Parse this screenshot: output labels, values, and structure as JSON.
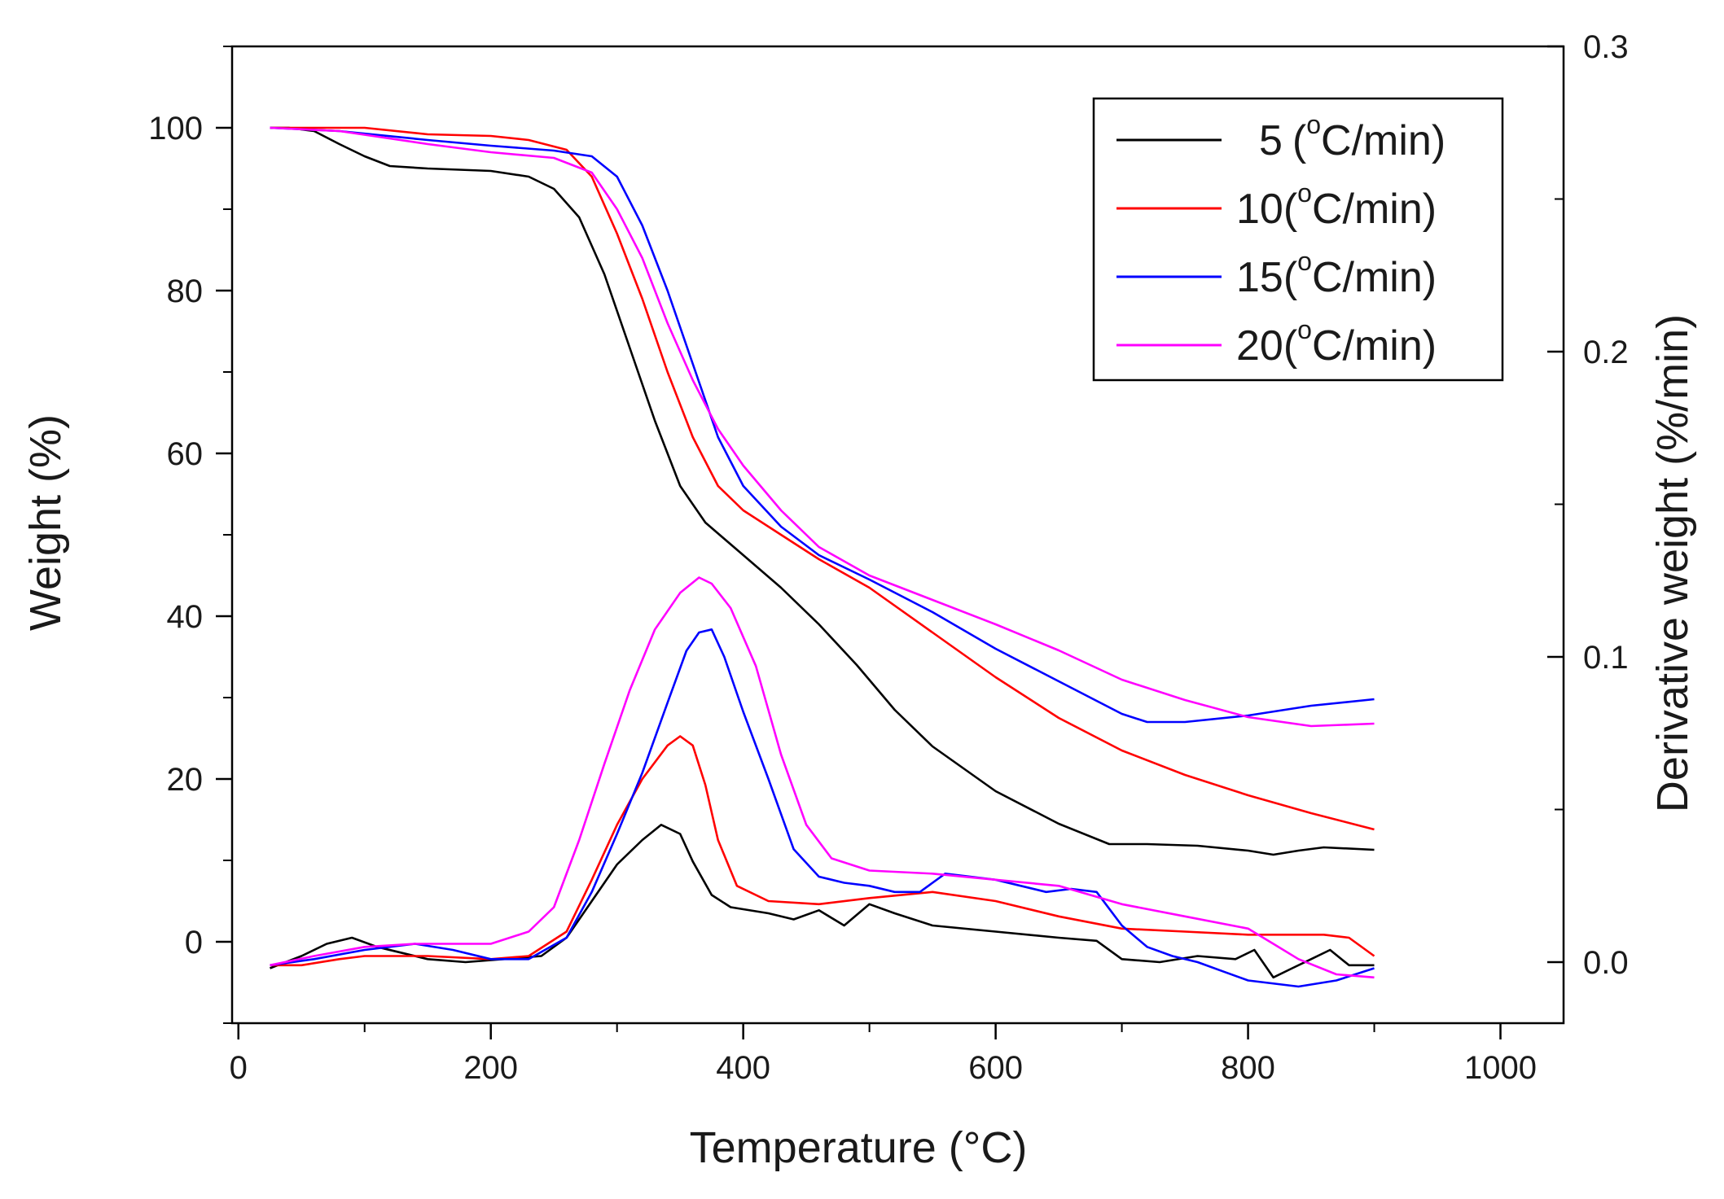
{
  "chart_data": {
    "type": "line",
    "xlabel": "Temperature (°C)",
    "ylabel": "Weight (%)",
    "y2label": "Derivative weight (%/min)",
    "xlim": [
      -5,
      1050
    ],
    "ylim": [
      -10,
      110
    ],
    "y2lim": [
      -0.02,
      0.3
    ],
    "x_ticks": [
      "0",
      "200",
      "400",
      "600",
      "800",
      "1000"
    ],
    "x_tick_values": [
      0,
      200,
      400,
      600,
      800,
      1000
    ],
    "y_ticks": [
      "0",
      "20",
      "40",
      "60",
      "80",
      "100"
    ],
    "y_tick_values": [
      0,
      20,
      40,
      60,
      80,
      100
    ],
    "y2_ticks": [
      "0.0",
      "0.1",
      "0.2",
      "0.3"
    ],
    "y2_tick_values": [
      0.0,
      0.1,
      0.2,
      0.3
    ],
    "legend_position": "top-right",
    "legend_unit_prefix": "(",
    "legend_unit_sup": "o",
    "legend_unit_suffix": "C/min)",
    "series": [
      {
        "name": "5",
        "color": "#000000",
        "tga": [
          [
            25,
            100
          ],
          [
            40,
            100
          ],
          [
            60,
            99.6
          ],
          [
            80,
            98
          ],
          [
            100,
            96.5
          ],
          [
            120,
            95.3
          ],
          [
            150,
            95
          ],
          [
            200,
            94.7
          ],
          [
            230,
            94
          ],
          [
            250,
            92.5
          ],
          [
            270,
            89
          ],
          [
            290,
            82
          ],
          [
            310,
            73
          ],
          [
            330,
            64
          ],
          [
            350,
            56
          ],
          [
            370,
            51.5
          ],
          [
            400,
            47.5
          ],
          [
            430,
            43.5
          ],
          [
            460,
            39
          ],
          [
            490,
            34
          ],
          [
            520,
            28.5
          ],
          [
            550,
            24
          ],
          [
            600,
            18.5
          ],
          [
            650,
            14.5
          ],
          [
            690,
            12
          ],
          [
            720,
            12
          ],
          [
            760,
            11.8
          ],
          [
            800,
            11.2
          ],
          [
            820,
            10.7
          ],
          [
            840,
            11.2
          ],
          [
            860,
            11.6
          ],
          [
            900,
            11.3
          ]
        ],
        "dtg": [
          [
            25,
            -0.002
          ],
          [
            50,
            0.002
          ],
          [
            70,
            0.006
          ],
          [
            90,
            0.008
          ],
          [
            110,
            0.005
          ],
          [
            130,
            0.003
          ],
          [
            150,
            0.001
          ],
          [
            180,
            0.0
          ],
          [
            210,
            0.001
          ],
          [
            240,
            0.002
          ],
          [
            260,
            0.008
          ],
          [
            280,
            0.02
          ],
          [
            300,
            0.032
          ],
          [
            320,
            0.04
          ],
          [
            335,
            0.045
          ],
          [
            350,
            0.042
          ],
          [
            360,
            0.033
          ],
          [
            375,
            0.022
          ],
          [
            390,
            0.018
          ],
          [
            420,
            0.016
          ],
          [
            440,
            0.014
          ],
          [
            460,
            0.017
          ],
          [
            480,
            0.012
          ],
          [
            500,
            0.019
          ],
          [
            520,
            0.016
          ],
          [
            550,
            0.012
          ],
          [
            600,
            0.01
          ],
          [
            650,
            0.008
          ],
          [
            680,
            0.007
          ],
          [
            700,
            0.001
          ],
          [
            730,
            0.0
          ],
          [
            760,
            0.002
          ],
          [
            790,
            0.001
          ],
          [
            805,
            0.004
          ],
          [
            820,
            -0.005
          ],
          [
            835,
            -0.002
          ],
          [
            850,
            0.001
          ],
          [
            865,
            0.004
          ],
          [
            880,
            -0.001
          ],
          [
            900,
            -0.001
          ]
        ]
      },
      {
        "name": "10",
        "color": "#ff0000",
        "tga": [
          [
            25,
            100
          ],
          [
            100,
            100
          ],
          [
            150,
            99.2
          ],
          [
            200,
            99
          ],
          [
            230,
            98.5
          ],
          [
            260,
            97.3
          ],
          [
            280,
            94
          ],
          [
            300,
            87
          ],
          [
            320,
            79
          ],
          [
            340,
            70
          ],
          [
            360,
            62
          ],
          [
            380,
            56
          ],
          [
            400,
            53
          ],
          [
            430,
            50
          ],
          [
            460,
            47
          ],
          [
            500,
            43.5
          ],
          [
            550,
            38
          ],
          [
            600,
            32.5
          ],
          [
            650,
            27.5
          ],
          [
            700,
            23.5
          ],
          [
            750,
            20.5
          ],
          [
            800,
            18
          ],
          [
            850,
            15.8
          ],
          [
            900,
            13.8
          ]
        ],
        "dtg": [
          [
            25,
            -0.001
          ],
          [
            50,
            -0.001
          ],
          [
            80,
            0.001
          ],
          [
            100,
            0.002
          ],
          [
            150,
            0.002
          ],
          [
            200,
            0.001
          ],
          [
            230,
            0.002
          ],
          [
            260,
            0.01
          ],
          [
            280,
            0.027
          ],
          [
            300,
            0.045
          ],
          [
            320,
            0.06
          ],
          [
            340,
            0.071
          ],
          [
            350,
            0.074
          ],
          [
            360,
            0.071
          ],
          [
            370,
            0.058
          ],
          [
            380,
            0.04
          ],
          [
            395,
            0.025
          ],
          [
            420,
            0.02
          ],
          [
            460,
            0.019
          ],
          [
            500,
            0.021
          ],
          [
            550,
            0.023
          ],
          [
            600,
            0.02
          ],
          [
            650,
            0.015
          ],
          [
            700,
            0.011
          ],
          [
            750,
            0.01
          ],
          [
            800,
            0.009
          ],
          [
            860,
            0.009
          ],
          [
            880,
            0.008
          ],
          [
            900,
            0.002
          ]
        ]
      },
      {
        "name": "15",
        "color": "#0000ff",
        "tga": [
          [
            25,
            100
          ],
          [
            80,
            99.6
          ],
          [
            150,
            98.5
          ],
          [
            200,
            97.8
          ],
          [
            250,
            97.2
          ],
          [
            280,
            96.5
          ],
          [
            300,
            94
          ],
          [
            320,
            88
          ],
          [
            340,
            80
          ],
          [
            360,
            71
          ],
          [
            380,
            62
          ],
          [
            400,
            56
          ],
          [
            430,
            51
          ],
          [
            460,
            47.5
          ],
          [
            500,
            44.5
          ],
          [
            550,
            40.5
          ],
          [
            600,
            36
          ],
          [
            650,
            32
          ],
          [
            700,
            28
          ],
          [
            720,
            27
          ],
          [
            750,
            27
          ],
          [
            800,
            27.8
          ],
          [
            850,
            29
          ],
          [
            900,
            29.8
          ]
        ],
        "dtg": [
          [
            25,
            -0.001
          ],
          [
            60,
            0.001
          ],
          [
            100,
            0.004
          ],
          [
            140,
            0.006
          ],
          [
            170,
            0.004
          ],
          [
            200,
            0.001
          ],
          [
            230,
            0.001
          ],
          [
            260,
            0.008
          ],
          [
            280,
            0.023
          ],
          [
            300,
            0.042
          ],
          [
            320,
            0.062
          ],
          [
            340,
            0.085
          ],
          [
            355,
            0.102
          ],
          [
            365,
            0.108
          ],
          [
            375,
            0.109
          ],
          [
            385,
            0.1
          ],
          [
            400,
            0.082
          ],
          [
            420,
            0.06
          ],
          [
            440,
            0.037
          ],
          [
            460,
            0.028
          ],
          [
            480,
            0.026
          ],
          [
            500,
            0.025
          ],
          [
            520,
            0.023
          ],
          [
            540,
            0.023
          ],
          [
            560,
            0.029
          ],
          [
            580,
            0.028
          ],
          [
            600,
            0.027
          ],
          [
            620,
            0.025
          ],
          [
            640,
            0.023
          ],
          [
            660,
            0.024
          ],
          [
            680,
            0.023
          ],
          [
            700,
            0.012
          ],
          [
            720,
            0.005
          ],
          [
            740,
            0.002
          ],
          [
            760,
            0.0
          ],
          [
            780,
            -0.003
          ],
          [
            800,
            -0.006
          ],
          [
            840,
            -0.008
          ],
          [
            870,
            -0.006
          ],
          [
            900,
            -0.002
          ]
        ]
      },
      {
        "name": "20",
        "color": "#ff00ff",
        "tga": [
          [
            25,
            100
          ],
          [
            80,
            99.6
          ],
          [
            150,
            98
          ],
          [
            200,
            97
          ],
          [
            250,
            96.3
          ],
          [
            280,
            94.5
          ],
          [
            300,
            90
          ],
          [
            320,
            84
          ],
          [
            340,
            76
          ],
          [
            360,
            69
          ],
          [
            380,
            63
          ],
          [
            400,
            58.5
          ],
          [
            430,
            53
          ],
          [
            460,
            48.5
          ],
          [
            500,
            45
          ],
          [
            550,
            42
          ],
          [
            600,
            39
          ],
          [
            650,
            35.8
          ],
          [
            700,
            32.2
          ],
          [
            750,
            29.7
          ],
          [
            800,
            27.6
          ],
          [
            850,
            26.5
          ],
          [
            900,
            26.8
          ]
        ],
        "dtg": [
          [
            25,
            -0.001
          ],
          [
            60,
            0.002
          ],
          [
            100,
            0.005
          ],
          [
            140,
            0.006
          ],
          [
            170,
            0.006
          ],
          [
            200,
            0.006
          ],
          [
            230,
            0.01
          ],
          [
            250,
            0.018
          ],
          [
            270,
            0.04
          ],
          [
            290,
            0.065
          ],
          [
            310,
            0.089
          ],
          [
            330,
            0.109
          ],
          [
            350,
            0.121
          ],
          [
            365,
            0.126
          ],
          [
            375,
            0.124
          ],
          [
            390,
            0.116
          ],
          [
            410,
            0.097
          ],
          [
            430,
            0.068
          ],
          [
            450,
            0.045
          ],
          [
            470,
            0.034
          ],
          [
            500,
            0.03
          ],
          [
            550,
            0.029
          ],
          [
            600,
            0.027
          ],
          [
            650,
            0.025
          ],
          [
            700,
            0.019
          ],
          [
            750,
            0.015
          ],
          [
            800,
            0.011
          ],
          [
            820,
            0.006
          ],
          [
            840,
            0.001
          ],
          [
            870,
            -0.004
          ],
          [
            900,
            -0.005
          ]
        ]
      }
    ]
  }
}
